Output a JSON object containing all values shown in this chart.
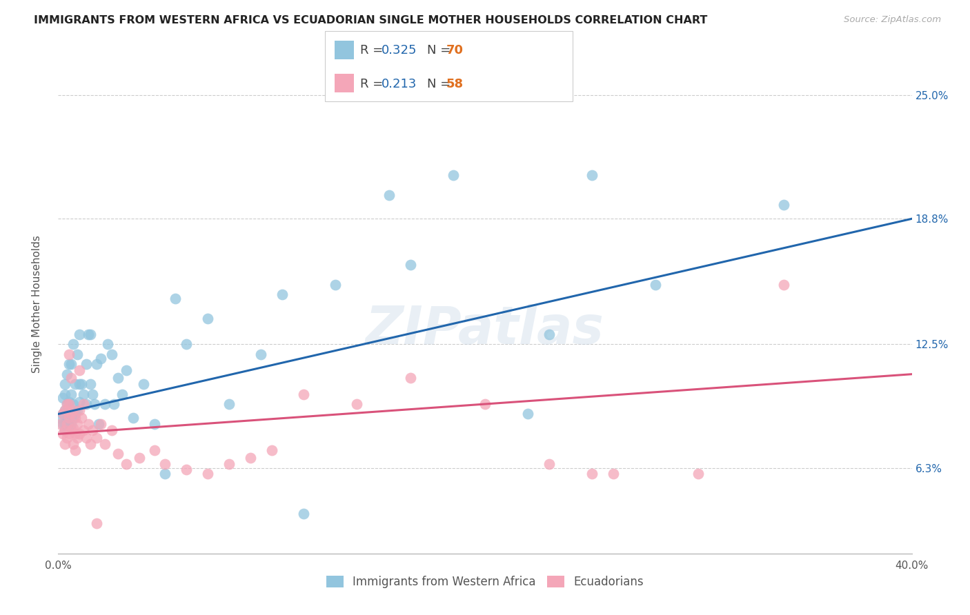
{
  "title": "IMMIGRANTS FROM WESTERN AFRICA VS ECUADORIAN SINGLE MOTHER HOUSEHOLDS CORRELATION CHART",
  "source": "Source: ZipAtlas.com",
  "ylabel": "Single Mother Households",
  "ytick_labels": [
    "6.3%",
    "12.5%",
    "18.8%",
    "25.0%"
  ],
  "ytick_values": [
    0.063,
    0.125,
    0.188,
    0.25
  ],
  "xlim": [
    0.0,
    0.4
  ],
  "ylim": [
    0.02,
    0.27
  ],
  "legend_label1": "Immigrants from Western Africa",
  "legend_label2": "Ecuadorians",
  "color_blue": "#92c5de",
  "color_pink": "#f4a6b8",
  "line_color_blue": "#2166ac",
  "line_color_pink": "#d9527a",
  "R1": 0.325,
  "N1": 70,
  "R2": 0.213,
  "N2": 58,
  "title_color": "#222222",
  "source_color": "#aaaaaa",
  "watermark": "ZIPatlas",
  "blue_line_x0": 0.0,
  "blue_line_y0": 0.09,
  "blue_line_x1": 0.4,
  "blue_line_y1": 0.188,
  "pink_line_x0": 0.0,
  "pink_line_y0": 0.08,
  "pink_line_x1": 0.4,
  "pink_line_y1": 0.11,
  "blue_scatter_x": [
    0.001,
    0.002,
    0.002,
    0.002,
    0.003,
    0.003,
    0.003,
    0.003,
    0.003,
    0.004,
    0.004,
    0.004,
    0.004,
    0.005,
    0.005,
    0.005,
    0.005,
    0.006,
    0.006,
    0.006,
    0.006,
    0.007,
    0.007,
    0.007,
    0.008,
    0.008,
    0.009,
    0.009,
    0.01,
    0.01,
    0.01,
    0.011,
    0.012,
    0.013,
    0.013,
    0.014,
    0.015,
    0.015,
    0.016,
    0.017,
    0.018,
    0.019,
    0.02,
    0.022,
    0.023,
    0.025,
    0.026,
    0.028,
    0.03,
    0.032,
    0.035,
    0.04,
    0.045,
    0.05,
    0.055,
    0.06,
    0.07,
    0.08,
    0.095,
    0.105,
    0.115,
    0.13,
    0.155,
    0.165,
    0.185,
    0.22,
    0.23,
    0.25,
    0.28,
    0.34
  ],
  "blue_scatter_y": [
    0.088,
    0.085,
    0.09,
    0.098,
    0.082,
    0.085,
    0.092,
    0.1,
    0.105,
    0.083,
    0.088,
    0.095,
    0.11,
    0.084,
    0.09,
    0.096,
    0.115,
    0.085,
    0.09,
    0.1,
    0.115,
    0.088,
    0.095,
    0.125,
    0.09,
    0.105,
    0.092,
    0.12,
    0.096,
    0.105,
    0.13,
    0.105,
    0.1,
    0.095,
    0.115,
    0.13,
    0.105,
    0.13,
    0.1,
    0.095,
    0.115,
    0.085,
    0.118,
    0.095,
    0.125,
    0.12,
    0.095,
    0.108,
    0.1,
    0.112,
    0.088,
    0.105,
    0.085,
    0.06,
    0.148,
    0.125,
    0.138,
    0.095,
    0.12,
    0.15,
    0.04,
    0.155,
    0.2,
    0.165,
    0.21,
    0.09,
    0.13,
    0.21,
    0.155,
    0.195
  ],
  "pink_scatter_x": [
    0.001,
    0.002,
    0.002,
    0.003,
    0.003,
    0.003,
    0.004,
    0.004,
    0.004,
    0.005,
    0.005,
    0.005,
    0.006,
    0.006,
    0.007,
    0.007,
    0.007,
    0.008,
    0.008,
    0.009,
    0.009,
    0.01,
    0.01,
    0.011,
    0.012,
    0.013,
    0.014,
    0.015,
    0.016,
    0.018,
    0.02,
    0.022,
    0.025,
    0.028,
    0.032,
    0.038,
    0.045,
    0.05,
    0.06,
    0.07,
    0.08,
    0.09,
    0.1,
    0.115,
    0.14,
    0.165,
    0.2,
    0.23,
    0.25,
    0.26,
    0.3,
    0.34,
    0.005,
    0.006,
    0.008,
    0.01,
    0.012,
    0.018
  ],
  "pink_scatter_y": [
    0.085,
    0.08,
    0.09,
    0.075,
    0.082,
    0.092,
    0.078,
    0.085,
    0.095,
    0.08,
    0.088,
    0.095,
    0.082,
    0.09,
    0.075,
    0.083,
    0.092,
    0.08,
    0.088,
    0.078,
    0.085,
    0.08,
    0.092,
    0.088,
    0.082,
    0.078,
    0.085,
    0.075,
    0.082,
    0.078,
    0.085,
    0.075,
    0.082,
    0.07,
    0.065,
    0.068,
    0.072,
    0.065,
    0.062,
    0.06,
    0.065,
    0.068,
    0.072,
    0.1,
    0.095,
    0.108,
    0.095,
    0.065,
    0.06,
    0.06,
    0.06,
    0.155,
    0.12,
    0.108,
    0.072,
    0.112,
    0.095,
    0.035
  ]
}
